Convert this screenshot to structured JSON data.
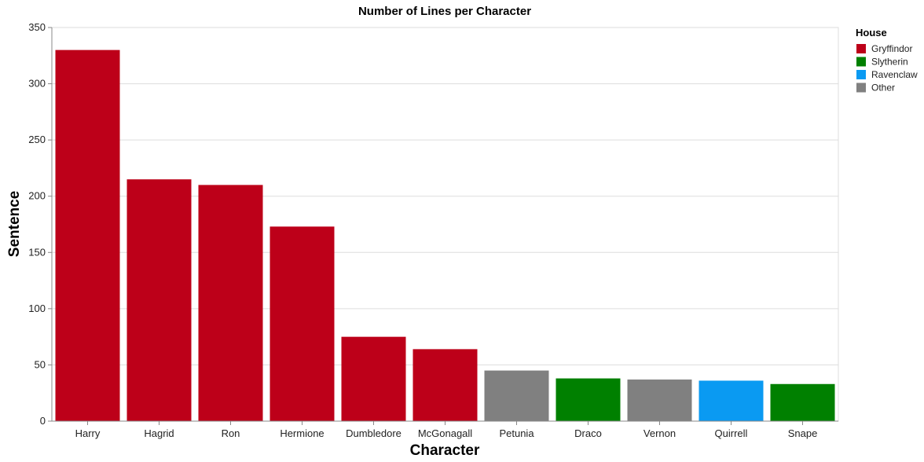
{
  "chart_data": {
    "type": "bar",
    "title": "Number of Lines per Character",
    "xlabel": "Character",
    "ylabel": "Sentence",
    "ylim": [
      0,
      350
    ],
    "yticks": [
      0,
      50,
      100,
      150,
      200,
      250,
      300,
      350
    ],
    "grid": true,
    "legend_placement": "top-right",
    "legend": {
      "title": "House",
      "entries": [
        {
          "name": "Gryffindor",
          "color": "#bd0019"
        },
        {
          "name": "Slytherin",
          "color": "#008000"
        },
        {
          "name": "Ravenclaw",
          "color": "#0a9af2"
        },
        {
          "name": "Other",
          "color": "#808080"
        }
      ]
    },
    "bars": [
      {
        "category": "Harry",
        "value": 330,
        "house": "Gryffindor"
      },
      {
        "category": "Hagrid",
        "value": 215,
        "house": "Gryffindor"
      },
      {
        "category": "Ron",
        "value": 210,
        "house": "Gryffindor"
      },
      {
        "category": "Hermione",
        "value": 173,
        "house": "Gryffindor"
      },
      {
        "category": "Dumbledore",
        "value": 75,
        "house": "Gryffindor"
      },
      {
        "category": "McGonagall",
        "value": 64,
        "house": "Gryffindor"
      },
      {
        "category": "Petunia",
        "value": 45,
        "house": "Other"
      },
      {
        "category": "Draco",
        "value": 38,
        "house": "Slytherin"
      },
      {
        "category": "Vernon",
        "value": 37,
        "house": "Other"
      },
      {
        "category": "Quirrell",
        "value": 36,
        "house": "Ravenclaw"
      },
      {
        "category": "Snape",
        "value": 33,
        "house": "Slytherin"
      }
    ]
  }
}
